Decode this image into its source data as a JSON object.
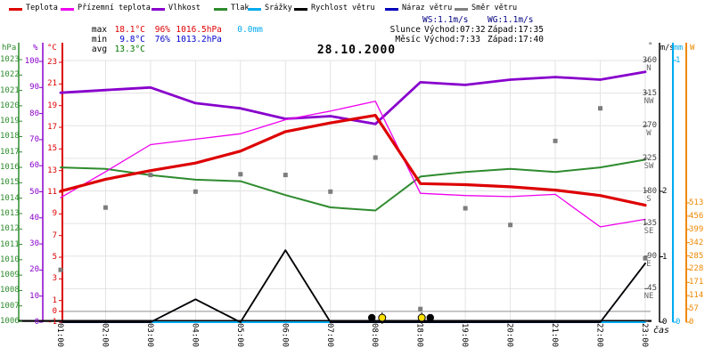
{
  "title": "28.10.2000",
  "time_axis_label": "čas",
  "legend": {
    "items": [
      {
        "key": "teplota",
        "label": "Teplota",
        "color": "#dd0000"
      },
      {
        "key": "prizemni-teplota",
        "label": "Přízemní teplota",
        "color": "#ee00ee"
      },
      {
        "key": "vlhkost",
        "label": "Vlhkost",
        "color": "#8800cc"
      },
      {
        "key": "tlak",
        "label": "Tlak",
        "color": "#2e8b2e"
      },
      {
        "key": "srazky",
        "label": "Srážky",
        "color": "#00aaee"
      },
      {
        "key": "rychlost-vetru",
        "label": "Rychlost větru",
        "color": "#000000"
      },
      {
        "key": "naraz-vetru",
        "label": "Náraz větru",
        "color": "#0000bb"
      },
      {
        "key": "smer-vetru",
        "label": "Směr větru",
        "color": "#808080"
      }
    ]
  },
  "stats": {
    "max_label": "max",
    "max_temp": "18.1°C",
    "max_hum": "96%",
    "max_press": "1016.5hPa",
    "max_precip": "0.0mm",
    "min_label": "min",
    "min_temp": "9.8°C",
    "min_hum": "76%",
    "min_press": "1013.2hPa",
    "avg_label": "avg",
    "avg_temp": "13.3°C",
    "ws": "WS:1.1m/s",
    "wg": "WG:1.1m/s",
    "sun_label": "Slunce",
    "sun_rise": "Východ:07:32",
    "sun_set": "Západ:17:35",
    "moon_label": "Měsíc",
    "moon_rise": "Východ:7:33",
    "moon_set": "Západ:17:40"
  },
  "axis_headers": {
    "hpa": "hPa",
    "pct": "%",
    "degc": "°C",
    "deg": "°",
    "ms": "m/s",
    "mm": "mm",
    "watt": "W"
  },
  "colors": {
    "temp": "#dd0000",
    "ground": "#ee00ee",
    "humidity": "#8800cc",
    "pressure": "#2e8b2e",
    "precip": "#00aaee",
    "wind": "#000000",
    "gust": "#0000bb",
    "direction": "#7d7d7d",
    "grid": "#e3e3e3",
    "zero_line": "#8f8f8f",
    "watt_axis": "#ee8800",
    "min_text": "#0000cc",
    "max_text": "#dd0000",
    "avg_text": "#007700",
    "wind_stats_text": "#000080",
    "sun_marker": "#ffe000"
  },
  "chart_data": {
    "type": "line",
    "title": "28.10.2000",
    "x_labels": [
      "01:00",
      "02:00",
      "03:00",
      "04:00",
      "05:00",
      "06:00",
      "07:00",
      "08:00",
      "18:00",
      "19:00",
      "20:00",
      "21:00",
      "22:00",
      "23:00"
    ],
    "axes_ranges": {
      "temp_C": [
        -1,
        23
      ],
      "humidity_pct": [
        0,
        100
      ],
      "pressure_hPa": [
        1006,
        1023
      ],
      "wind_ms": [
        0,
        4
      ],
      "direction_deg": [
        0,
        360
      ],
      "precip_mm": [
        0,
        1
      ],
      "radiation_W": [
        0,
        1125
      ]
    },
    "series": [
      {
        "key": "srazky",
        "name": "Srážky",
        "unit": "mm",
        "axis": "mm",
        "color": "#00aaee",
        "width": 2,
        "values": [
          0,
          0,
          0,
          0,
          0,
          0,
          0,
          0,
          0,
          0,
          0,
          0,
          0,
          0
        ]
      },
      {
        "key": "tlak",
        "name": "Tlak",
        "unit": "hPa",
        "axis": "press",
        "color": "#2e8b2e",
        "width": 2,
        "values": [
          1016.0,
          1015.9,
          1015.5,
          1015.2,
          1015.1,
          1014.2,
          1013.4,
          1013.2,
          1015.4,
          1015.7,
          1015.9,
          1015.7,
          1016.0,
          1016.5
        ]
      },
      {
        "key": "vlhkost",
        "name": "Vlhkost",
        "unit": "%",
        "axis": "hum",
        "color": "#8800cc",
        "width": 2.8,
        "values": [
          88,
          89,
          90,
          84,
          82,
          78,
          79,
          76,
          92,
          91,
          93,
          94,
          93,
          96
        ]
      },
      {
        "key": "prizemni-teplota",
        "name": "Přízemní teplota",
        "unit": "°C",
        "axis": "temp",
        "color": "#ee00ee",
        "width": 1.3,
        "values": [
          10.5,
          12.9,
          15.4,
          15.9,
          16.4,
          17.7,
          18.5,
          19.4,
          10.9,
          10.7,
          10.6,
          10.8,
          7.8,
          8.5
        ]
      },
      {
        "key": "teplota",
        "name": "Teplota",
        "unit": "°C",
        "axis": "temp",
        "color": "#dd0000",
        "width": 3.2,
        "values": [
          11.1,
          12.2,
          13.0,
          13.7,
          14.8,
          16.6,
          17.4,
          18.1,
          11.8,
          11.7,
          11.5,
          11.2,
          10.7,
          9.8
        ]
      },
      {
        "key": "naraz-vetru",
        "name": "Náraz větru",
        "unit": "m/s",
        "axis": "wind",
        "color": "#0000bb",
        "width": 1.5,
        "values": [
          0,
          0,
          0,
          0.35,
          0,
          1.1,
          0,
          0,
          0,
          0,
          0,
          0,
          0,
          0.9
        ]
      },
      {
        "key": "rychlost-vetru",
        "name": "Rychlost větru",
        "unit": "m/s",
        "axis": "wind",
        "color": "#000000",
        "width": 1.8,
        "values": [
          0,
          0,
          0,
          0.35,
          0,
          1.1,
          0,
          0,
          0,
          0,
          0,
          0,
          0,
          0.9
        ]
      }
    ],
    "scatter": {
      "key": "smer-vetru",
      "name": "Směr větru",
      "unit": "°",
      "axis": "dir",
      "color": "#7d7d7d",
      "values": [
        71,
        157,
        202,
        179,
        203,
        202,
        179,
        226,
        17,
        156,
        133,
        249,
        294,
        87
      ]
    },
    "axis_ticks": {
      "press": [
        1023,
        1022,
        1021,
        1020,
        1019,
        1018,
        1017,
        1016,
        1015,
        1014,
        1013,
        1012,
        1011,
        1010,
        1009,
        1008,
        1007,
        1006
      ],
      "hum": [
        100,
        90,
        80,
        70,
        60,
        50,
        40,
        30,
        20,
        10,
        0
      ],
      "temp": [
        23,
        21,
        19,
        17,
        15,
        13,
        11,
        9,
        7,
        5,
        3,
        1,
        0,
        -1
      ],
      "dir": [
        {
          "v": 360,
          "c": "N"
        },
        {
          "v": 315,
          "c": "NW"
        },
        {
          "v": 270,
          "c": "W"
        },
        {
          "v": 225,
          "c": "SW"
        },
        {
          "v": 180,
          "c": "S"
        },
        {
          "v": 135,
          "c": "SE"
        },
        {
          "v": 90,
          "c": "E"
        },
        {
          "v": 45,
          "c": "NE"
        },
        {
          "v": 0,
          "c": ""
        }
      ],
      "ms": [
        2,
        1,
        0
      ],
      "mm": [
        1,
        0
      ],
      "watt": [
        513,
        456,
        399,
        342,
        285,
        228,
        171,
        114,
        57,
        0
      ]
    },
    "markers": [
      {
        "type": "moon",
        "i": 6.92
      },
      {
        "type": "sun",
        "i": 7.15
      },
      {
        "type": "sun",
        "i": 8.03
      },
      {
        "type": "moon",
        "i": 8.22
      }
    ]
  }
}
